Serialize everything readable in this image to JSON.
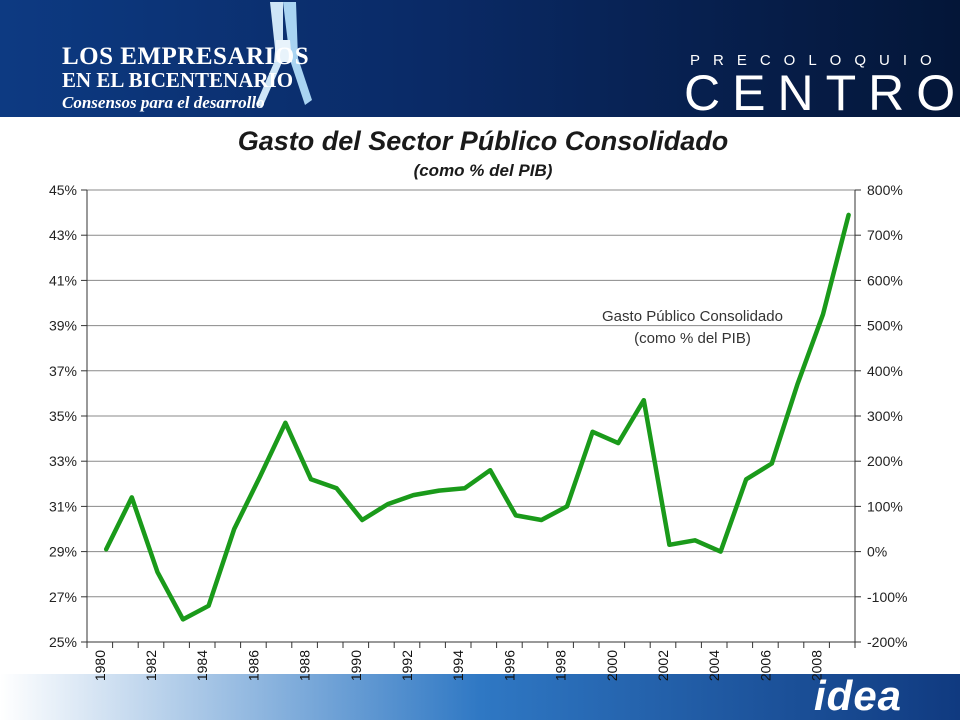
{
  "header": {
    "brand_left_line1": "LOS EMPRESARIOS",
    "brand_left_line2": "EN EL BICENTENARIO",
    "brand_left_line3": "Consensos para el desarrollo",
    "brand_right_top": "PRECOLOQUIO",
    "brand_right_main": "CENTRO",
    "colors": {
      "banner_dark": "#0a2a66",
      "banner_light": "#2f78c4",
      "ribbon": "#a9d4f2"
    }
  },
  "footer": {
    "logo_text": "idea",
    "colors": {
      "bar": "#1f5fae"
    }
  },
  "chart_data": {
    "type": "line",
    "title": "Gasto del Sector Público Consolidado",
    "subtitle": "(como % del PIB)",
    "annotation_line1": "Gasto Público Consolidado",
    "annotation_line2": "(como % del PIB)",
    "x": [
      1980,
      1981,
      1982,
      1983,
      1984,
      1985,
      1986,
      1987,
      1988,
      1989,
      1990,
      1991,
      1992,
      1993,
      1994,
      1995,
      1996,
      1997,
      1998,
      1999,
      2000,
      2001,
      2002,
      2003,
      2004,
      2005,
      2006,
      2007,
      2008,
      2009
    ],
    "series": [
      {
        "color": "#1a9a1a",
        "values": [
          29.1,
          31.4,
          28.1,
          26.0,
          26.6,
          30.0,
          32.3,
          34.7,
          32.2,
          31.8,
          30.4,
          31.1,
          31.5,
          31.7,
          31.8,
          32.6,
          30.6,
          30.4,
          31.0,
          34.3,
          33.8,
          35.7,
          29.3,
          29.5,
          29.0,
          32.2,
          32.9,
          36.4,
          39.5,
          43.9
        ]
      }
    ],
    "x_tick_labels": [
      "1980",
      "1982",
      "1984",
      "1986",
      "1988",
      "1990",
      "1992",
      "1994",
      "1996",
      "1998",
      "2000",
      "2002",
      "2004",
      "2006",
      "2008"
    ],
    "y_left_ticks": [
      "25%",
      "27%",
      "29%",
      "31%",
      "33%",
      "35%",
      "37%",
      "39%",
      "41%",
      "43%",
      "45%"
    ],
    "y_right_ticks": [
      "-200%",
      "-100%",
      "0%",
      "100%",
      "200%",
      "300%",
      "400%",
      "500%",
      "600%",
      "700%",
      "800%"
    ],
    "ylim_left": [
      25,
      45
    ],
    "ylim_right": [
      -200,
      800
    ],
    "grid": true,
    "legend": "none"
  }
}
